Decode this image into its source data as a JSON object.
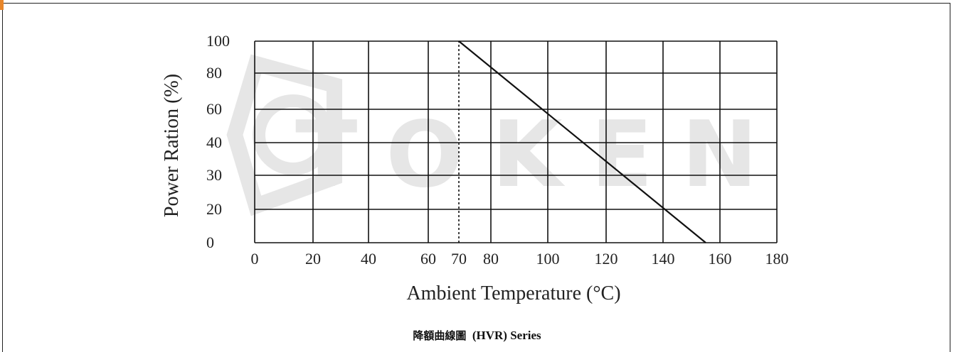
{
  "caption": {
    "cjk": "降額曲線圖",
    "latin": "(HVR) Series"
  },
  "watermark": {
    "text": "TOKEN",
    "logo": "token-hexagon-logo"
  },
  "colors": {
    "grid": "#111111",
    "line": "#111111",
    "frame": "#222222",
    "corner_mark": "#e8862a",
    "watermark": "#e6e6e6"
  },
  "chart_data": {
    "type": "line",
    "title": "",
    "xlabel": "Ambient Temperature (°C)",
    "ylabel": "Power Ration (%)",
    "x_ticks": [
      "0",
      "20",
      "40",
      "60",
      "70",
      "80",
      "100",
      "120",
      "140",
      "160",
      "180"
    ],
    "y_ticks": [
      "0",
      "20",
      "30",
      "40",
      "60",
      "80",
      "100"
    ],
    "grid": true,
    "legend": "none",
    "series": [
      {
        "x": [
          70,
          155
        ],
        "y": [
          100,
          0
        ]
      }
    ],
    "reference_line": {
      "x": 70,
      "y_from": 0,
      "y_to": 100,
      "style": "dashed"
    }
  }
}
